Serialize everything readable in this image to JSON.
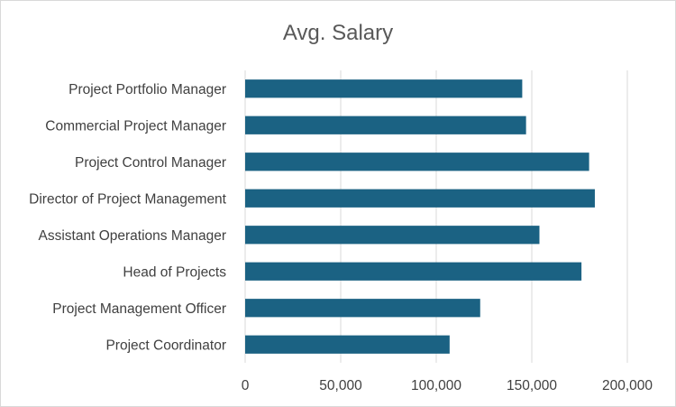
{
  "chart_data": {
    "type": "bar",
    "orientation": "horizontal",
    "title": "Avg. Salary",
    "xlabel": "",
    "ylabel": "",
    "categories": [
      "Project Portfolio Manager",
      "Commercial Project Manager",
      "Project Control Manager",
      "Director of Project Management",
      "Assistant Operations Manager",
      "Head of Projects",
      "Project Management Officer",
      "Project Coordinator"
    ],
    "values": [
      145000,
      147000,
      180000,
      183000,
      154000,
      176000,
      123000,
      107000
    ],
    "xlim": [
      0,
      200000
    ],
    "xticks": [
      0,
      50000,
      100000,
      150000,
      200000
    ],
    "xtick_labels": [
      "0",
      "50,000",
      "100,000",
      "150,000",
      "200,000"
    ],
    "grid": true,
    "legend": "none",
    "bar_color": "#1b6283"
  }
}
